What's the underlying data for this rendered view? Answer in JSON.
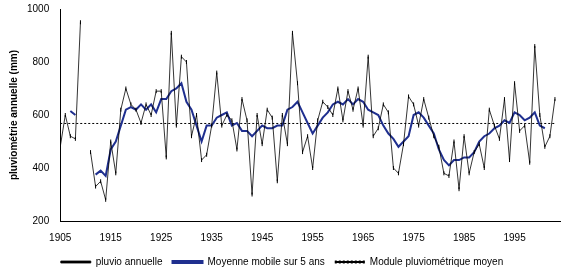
{
  "chart_data": {
    "type": "line",
    "y_label": "pluviométrie annuelle (mm)",
    "x": [
      1905,
      1906,
      1907,
      1908,
      1909,
      1910,
      1911,
      1912,
      1913,
      1914,
      1915,
      1916,
      1917,
      1918,
      1919,
      1920,
      1921,
      1922,
      1923,
      1924,
      1925,
      1926,
      1927,
      1928,
      1929,
      1930,
      1931,
      1932,
      1933,
      1934,
      1935,
      1936,
      1937,
      1938,
      1939,
      1940,
      1941,
      1942,
      1943,
      1944,
      1945,
      1946,
      1947,
      1948,
      1949,
      1950,
      1951,
      1952,
      1953,
      1954,
      1955,
      1956,
      1957,
      1958,
      1959,
      1960,
      1961,
      1962,
      1963,
      1964,
      1965,
      1966,
      1967,
      1968,
      1969,
      1970,
      1971,
      1972,
      1973,
      1974,
      1975,
      1976,
      1977,
      1978,
      1979,
      1980,
      1981,
      1982,
      1983,
      1984,
      1985,
      1986,
      1987,
      1988,
      1989,
      1990,
      1991,
      1992,
      1993,
      1994,
      1995,
      1996,
      1997,
      1998,
      1999,
      2000,
      2001,
      2002,
      2003
    ],
    "series": [
      {
        "name": "pluvio annuelle",
        "color": "#000000",
        "marker": "dash",
        "line_style": "solid",
        "values": [
          480,
          600,
          520,
          510,
          950,
          null,
          460,
          330,
          350,
          280,
          500,
          380,
          620,
          700,
          640,
          620,
          570,
          640,
          600,
          690,
          690,
          440,
          910,
          560,
          820,
          800,
          520,
          600,
          430,
          450,
          560,
          760,
          560,
          600,
          580,
          470,
          660,
          580,
          300,
          600,
          490,
          620,
          590,
          350,
          600,
          490,
          910,
          720,
          460,
          520,
          400,
          580,
          650,
          630,
          600,
          700,
          580,
          690,
          620,
          700,
          560,
          820,
          520,
          550,
          640,
          610,
          400,
          380,
          490,
          670,
          640,
          560,
          660,
          590,
          520,
          480,
          380,
          370,
          500,
          320,
          520,
          380,
          460,
          490,
          400,
          620,
          560,
          510,
          660,
          430,
          720,
          540,
          560,
          420,
          860,
          600,
          480,
          520,
          660
        ]
      },
      {
        "name": "Moyenne mobile sur 5 ans",
        "color": "#1f2f8f",
        "line_style": "solid",
        "values": [
          null,
          null,
          615,
          600,
          null,
          null,
          null,
          375,
          390,
          370,
          470,
          500,
          560,
          620,
          630,
          620,
          640,
          620,
          640,
          610,
          660,
          660,
          690,
          700,
          720,
          650,
          620,
          560,
          500,
          560,
          560,
          590,
          600,
          610,
          560,
          570,
          540,
          540,
          520,
          540,
          560,
          550,
          550,
          560,
          560,
          620,
          630,
          650,
          610,
          570,
          530,
          560,
          590,
          610,
          640,
          650,
          640,
          660,
          640,
          660,
          650,
          620,
          610,
          600,
          560,
          530,
          510,
          480,
          500,
          520,
          600,
          610,
          590,
          560,
          530,
          470,
          430,
          410,
          430,
          430,
          440,
          440,
          460,
          500,
          520,
          530,
          550,
          560,
          580,
          570,
          610,
          600,
          580,
          590,
          610,
          560,
          550,
          null,
          null
        ]
      },
      {
        "name": "Module pluviométrique moyen",
        "color": "#000000",
        "line_style": "dotted",
        "value": 568
      }
    ],
    "xlim": [
      1905,
      2004
    ],
    "xticks": [
      1905,
      1915,
      1925,
      1935,
      1945,
      1955,
      1965,
      1975,
      1985,
      1995
    ],
    "ylim": [
      200,
      1000
    ],
    "yticks": [
      200,
      400,
      600,
      800,
      1000
    ],
    "grid": false,
    "legend": "bottom"
  }
}
